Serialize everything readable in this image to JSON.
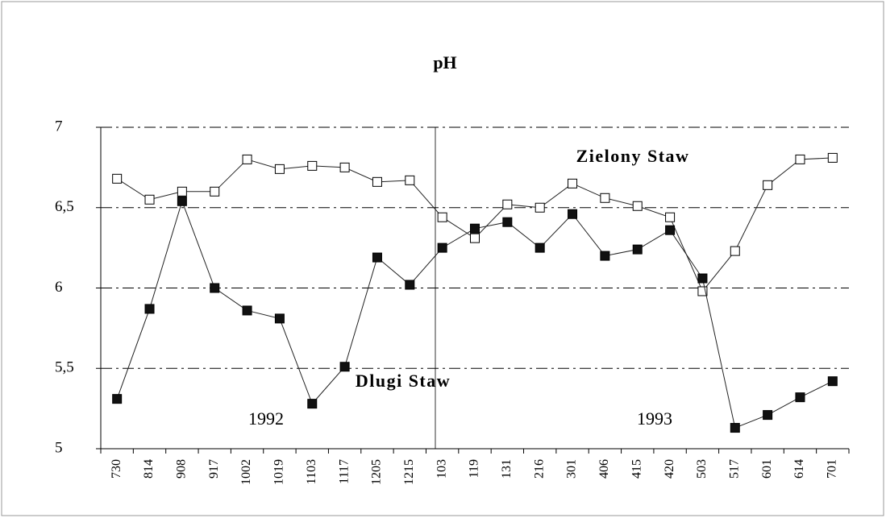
{
  "chart_data": {
    "type": "line",
    "title": "pH",
    "categories": [
      "730",
      "814",
      "908",
      "917",
      "1002",
      "1019",
      "1103",
      "1117",
      "1205",
      "1215",
      "103",
      "119",
      "131",
      "216",
      "301",
      "406",
      "415",
      "420",
      "503",
      "517",
      "601",
      "614",
      "701"
    ],
    "series": [
      {
        "name": "Zielony Staw",
        "color": "#ffffff",
        "values": [
          6.68,
          6.55,
          6.6,
          6.6,
          6.8,
          6.74,
          6.76,
          6.75,
          6.66,
          6.67,
          6.44,
          6.31,
          6.52,
          6.5,
          6.65,
          6.56,
          6.51,
          6.44,
          5.98,
          6.23,
          6.64,
          6.8,
          6.81
        ]
      },
      {
        "name": "Dlugi Staw",
        "color": "#111111",
        "values": [
          5.31,
          5.87,
          6.54,
          6.0,
          5.86,
          5.81,
          5.28,
          5.51,
          6.19,
          6.02,
          6.25,
          6.37,
          6.41,
          6.25,
          6.46,
          6.2,
          6.24,
          6.36,
          6.06,
          5.13,
          5.21,
          5.32,
          5.42
        ]
      }
    ],
    "annotations": [
      "1992",
      "1993"
    ],
    "ylim": [
      5,
      7
    ],
    "yticks": [
      5,
      {
        "value": 5.5,
        "label": "5,5"
      },
      6,
      {
        "value": 6.5,
        "label": "6,5"
      },
      7
    ],
    "grid": true
  }
}
